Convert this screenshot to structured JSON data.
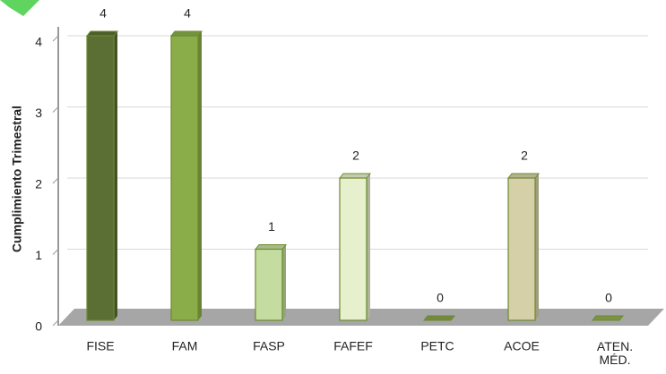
{
  "chart_data": {
    "type": "bar",
    "y_label": "Cumplimiento Trimestral",
    "categories": [
      "FISE",
      "FAM",
      "FASP",
      "FAFEF",
      "PETC",
      "ACOE",
      "ATEN. MÉD."
    ],
    "values": [
      4,
      4,
      1,
      2,
      0,
      2,
      0
    ],
    "colors": [
      "#5b6e34",
      "#8aad4a",
      "#c5dca0",
      "#e6f0cc",
      "#8aa047",
      "#d5d0a8",
      "#8fae4d"
    ],
    "ylim": [
      0,
      4
    ],
    "yticks": [
      0,
      1,
      2,
      3,
      4
    ],
    "grid": true
  }
}
